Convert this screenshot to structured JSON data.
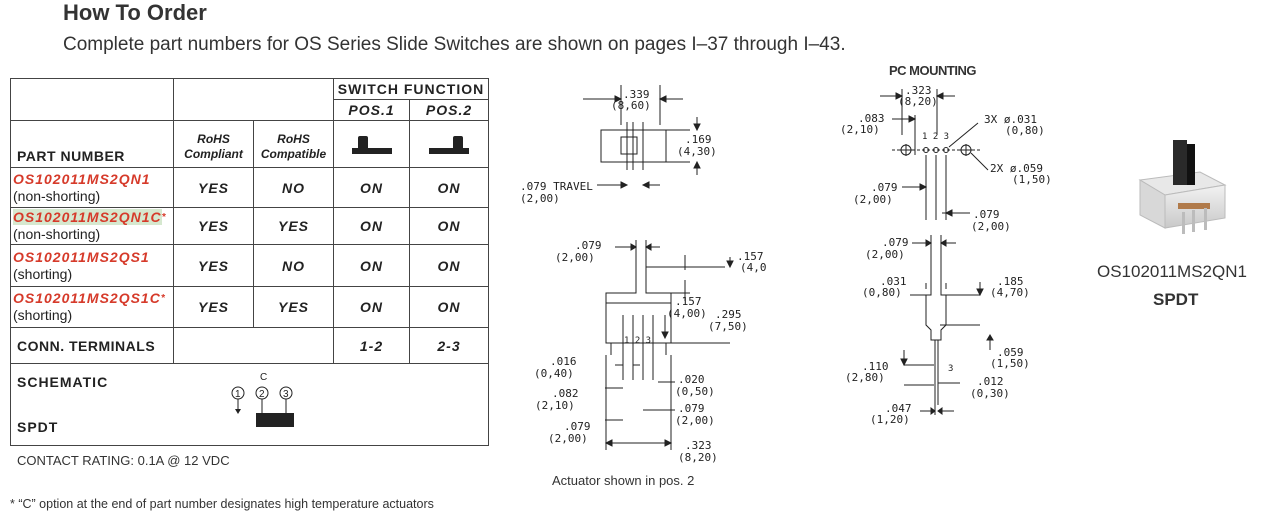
{
  "heading": {
    "title": "How To Order",
    "subtitle": "Complete part numbers for OS Series Slide Switches are shown on pages I–37 through I–43."
  },
  "table": {
    "switch_function": "SWITCH FUNCTION",
    "pos1": "POS.1",
    "pos2": "POS.2",
    "part_number": "PART NUMBER",
    "rohs_compliant_1": "RoHS",
    "rohs_compliant_2": "Compliant",
    "rohs_compatible_1": "RoHS",
    "rohs_compatible_2": "Compatible",
    "rows": [
      {
        "part": "OS102011MS2QN1",
        "star": "",
        "desc": "(non-shorting)",
        "compliant": "YES",
        "compatible": "NO",
        "pos1": "ON",
        "pos2": "ON"
      },
      {
        "part": "OS102011MS2QN1C",
        "star": "*",
        "desc": "(non-shorting)",
        "compliant": "YES",
        "compatible": "YES",
        "pos1": "ON",
        "pos2": "ON"
      },
      {
        "part": "OS102011MS2QS1",
        "star": "",
        "desc": "(shorting)",
        "compliant": "YES",
        "compatible": "NO",
        "pos1": "ON",
        "pos2": "ON"
      },
      {
        "part": "OS102011MS2QS1C",
        "star": "*",
        "desc": "(shorting)",
        "compliant": "YES",
        "compatible": "YES",
        "pos1": "ON",
        "pos2": "ON"
      }
    ],
    "conn_terminals": "CONN. TERMINALS",
    "conn_pos1": "1-2",
    "conn_pos2": "2-3",
    "schematic": "SCHEMATIC",
    "spdt": "SPDT",
    "schem_c": "C",
    "schem_1": "1",
    "schem_2": "2",
    "schem_3": "3"
  },
  "contact_rating": "CONTACT RATING: 0.1A @ 12 VDC",
  "footnote": "* “C” option at the end of part number designates high temperature actuators",
  "drawing1": {
    "d339": ".339",
    "d339m": "(8,60)",
    "d169": ".169",
    "d169m": "(4,30)",
    "travel": ".079 TRAVEL",
    "travelm": "(2,00)"
  },
  "drawing2": {
    "d079": ".079",
    "d079m": "(2,00)",
    "d157a": ".157",
    "d157am": "(4,0",
    "d157b": ".157",
    "d157bm": "(4,00)",
    "d295": ".295",
    "d295m": "(7,50)",
    "pins": "1 2 3",
    "d016": ".016",
    "d016m": "(0,40)",
    "d020": ".020",
    "d020m": "(0,50)",
    "d082": ".082",
    "d082m": "(2,10)",
    "d079b": ".079",
    "d079bm": "(2,00)",
    "d079c": ".079",
    "d079cm": "(2,00)",
    "d323": ".323",
    "d323m": "(8,20)",
    "note": "Actuator shown in pos. 2"
  },
  "pc_mounting": {
    "title": "PC MOUNTING",
    "d323": ".323",
    "d323m": "(8,20)",
    "d083": ".083",
    "d083m": "(2,10)",
    "hole3": "3X ø.031",
    "hole3m": "(0,80)",
    "hole2": "2X ø.059",
    "hole2m": "(1,50)",
    "pins": "1 2 3",
    "d079a": ".079",
    "d079am": "(2,00)",
    "d079b": ".079",
    "d079bm": "(2,00)"
  },
  "drawing4": {
    "d079": ".079",
    "d079m": "(2,00)",
    "d031": ".031",
    "d031m": "(0,80)",
    "d185": ".185",
    "d185m": "(4,70)",
    "d059": ".059",
    "d059m": "(1,50)",
    "d110": ".110",
    "d110m": "(2,80)",
    "pin3": "3",
    "d012": ".012",
    "d012m": "(0,30)",
    "d047": ".047",
    "d047m": "(1,20)"
  },
  "product": {
    "name": "OS102011MS2QN1",
    "type": "SPDT"
  }
}
